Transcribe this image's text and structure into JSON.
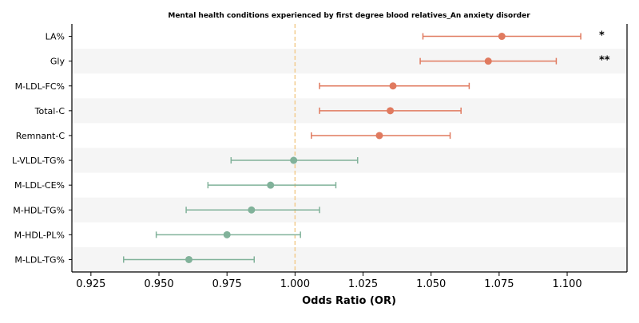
{
  "chart_data": {
    "type": "forest",
    "title": "Mental health conditions experienced by first degree blood relatives_An anxiety disorder",
    "xlabel": "Odds Ratio (OR)",
    "xlim": [
      0.918,
      1.122
    ],
    "xticks": [
      "0.925",
      "0.950",
      "0.975",
      "1.000",
      "1.025",
      "1.050",
      "1.075",
      "1.100"
    ],
    "reference_line": 1.0,
    "colors": {
      "risk": "#e07a5f",
      "protective": "#81b29a",
      "reference": "#f2cc8f",
      "band": "#f5f5f5"
    },
    "rows": [
      {
        "label": "LA%",
        "or": 1.076,
        "ci_low": 1.047,
        "ci_high": 1.105,
        "sig": "*",
        "group": "risk"
      },
      {
        "label": "Gly",
        "or": 1.071,
        "ci_low": 1.046,
        "ci_high": 1.096,
        "sig": "**",
        "group": "risk"
      },
      {
        "label": "M-LDL-FC%",
        "or": 1.036,
        "ci_low": 1.009,
        "ci_high": 1.064,
        "sig": "",
        "group": "risk"
      },
      {
        "label": "Total-C",
        "or": 1.035,
        "ci_low": 1.009,
        "ci_high": 1.061,
        "sig": "",
        "group": "risk"
      },
      {
        "label": "Remnant-C",
        "or": 1.031,
        "ci_low": 1.006,
        "ci_high": 1.057,
        "sig": "",
        "group": "risk"
      },
      {
        "label": "L-VLDL-TG%",
        "or": 0.9995,
        "ci_low": 0.9765,
        "ci_high": 1.023,
        "sig": "",
        "group": "protective"
      },
      {
        "label": "M-LDL-CE%",
        "or": 0.991,
        "ci_low": 0.968,
        "ci_high": 1.015,
        "sig": "",
        "group": "protective"
      },
      {
        "label": "M-HDL-TG%",
        "or": 0.984,
        "ci_low": 0.96,
        "ci_high": 1.009,
        "sig": "",
        "group": "protective"
      },
      {
        "label": "M-HDL-PL%",
        "or": 0.975,
        "ci_low": 0.949,
        "ci_high": 1.002,
        "sig": "",
        "group": "protective"
      },
      {
        "label": "M-LDL-TG%",
        "or": 0.961,
        "ci_low": 0.937,
        "ci_high": 0.985,
        "sig": "",
        "group": "protective"
      }
    ]
  }
}
